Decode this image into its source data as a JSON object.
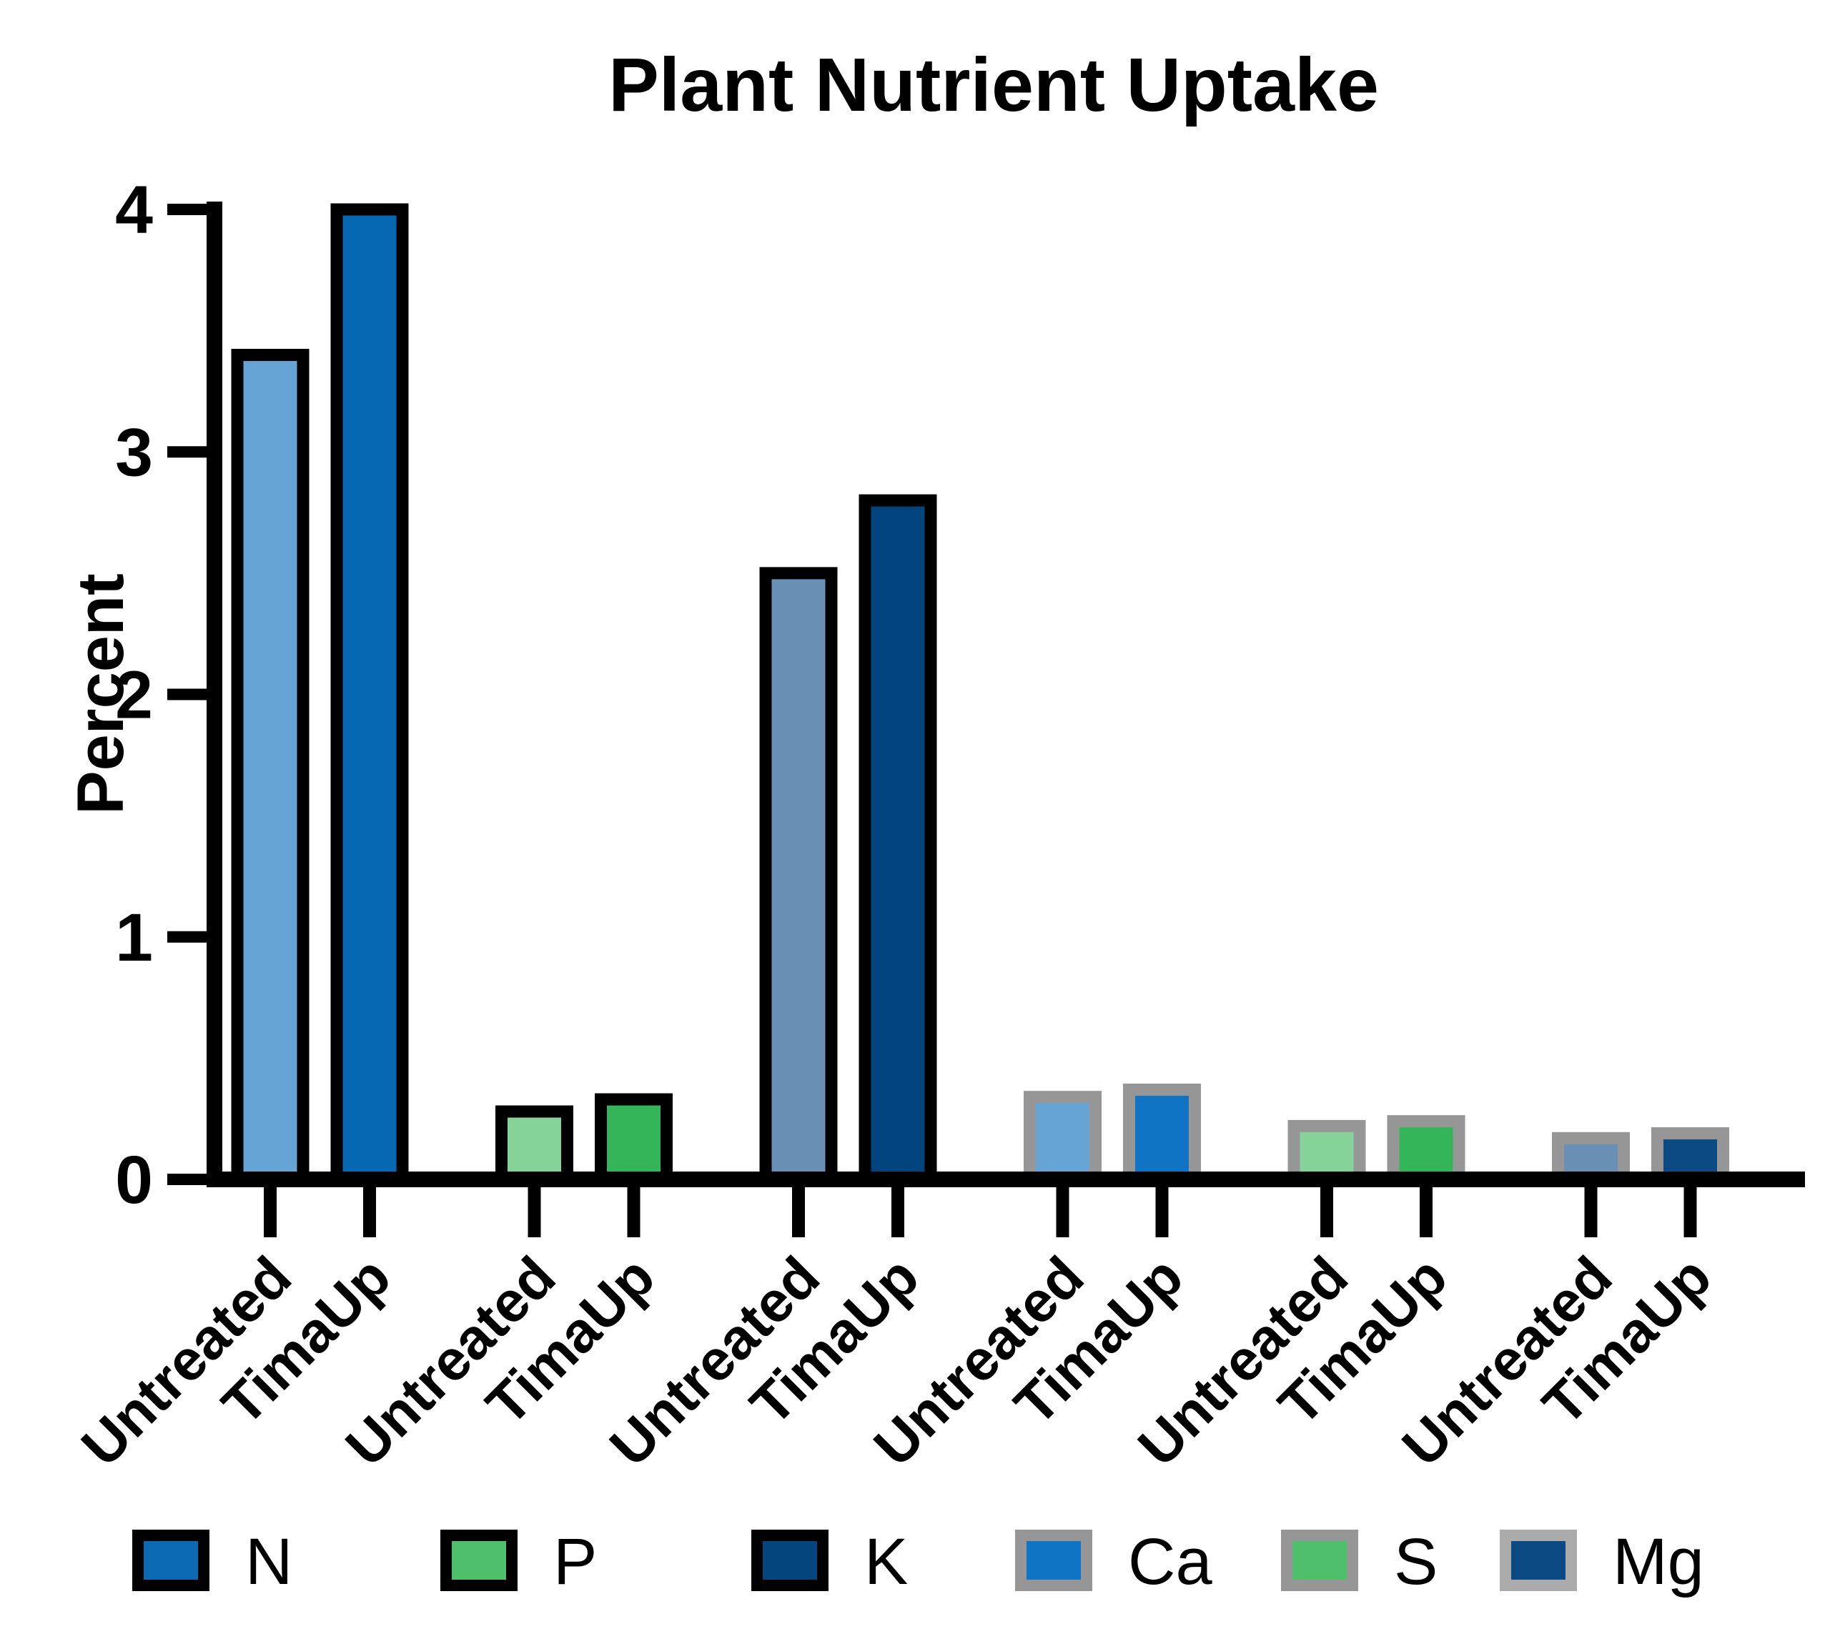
{
  "chart_data": {
    "type": "bar",
    "title": "Plant Nutrient Uptake",
    "ylabel": "Percent",
    "xlabel": "",
    "ylim": [
      0,
      4
    ],
    "yticks": [
      0,
      1,
      2,
      3,
      4
    ],
    "grid": false,
    "legend_position": "bottom",
    "treatments": [
      "Untreated",
      "TimaUp"
    ],
    "groups": [
      {
        "nutrient": "N",
        "border_color": "#000000",
        "bars": [
          {
            "treatment": "Untreated",
            "value": 3.4,
            "fill": "#67a4d6"
          },
          {
            "treatment": "TimaUp",
            "value": 4.0,
            "fill": "#0668b2"
          }
        ]
      },
      {
        "nutrient": "P",
        "border_color": "#000000",
        "bars": [
          {
            "treatment": "Untreated",
            "value": 0.28,
            "fill": "#85d398"
          },
          {
            "treatment": "TimaUp",
            "value": 0.33,
            "fill": "#35b559"
          }
        ]
      },
      {
        "nutrient": "K",
        "border_color": "#000000",
        "bars": [
          {
            "treatment": "Untreated",
            "value": 2.5,
            "fill": "#688fb4"
          },
          {
            "treatment": "TimaUp",
            "value": 2.8,
            "fill": "#02457e"
          }
        ]
      },
      {
        "nutrient": "Ca",
        "border_color": "#969696",
        "bars": [
          {
            "treatment": "Untreated",
            "value": 0.34,
            "fill": "#67a4d6"
          },
          {
            "treatment": "TimaUp",
            "value": 0.37,
            "fill": "#0f74c4"
          }
        ]
      },
      {
        "nutrient": "S",
        "border_color": "#969696",
        "bars": [
          {
            "treatment": "Untreated",
            "value": 0.22,
            "fill": "#85d398"
          },
          {
            "treatment": "TimaUp",
            "value": 0.24,
            "fill": "#35b559"
          }
        ]
      },
      {
        "nutrient": "Mg",
        "border_color": "#969696",
        "bars": [
          {
            "treatment": "Untreated",
            "value": 0.17,
            "fill": "#688fb4"
          },
          {
            "treatment": "TimaUp",
            "value": 0.19,
            "fill": "#0b4a82"
          }
        ]
      }
    ],
    "legend": [
      {
        "label": "N",
        "fill": "#0c69b4",
        "border": "#000000"
      },
      {
        "label": "P",
        "fill": "#4ec06c",
        "border": "#000000"
      },
      {
        "label": "K",
        "fill": "#05457e",
        "border": "#000000"
      },
      {
        "label": "Ca",
        "fill": "#0f74c4",
        "border": "#969696"
      },
      {
        "label": "S",
        "fill": "#4ec06c",
        "border": "#969696"
      },
      {
        "label": "Mg",
        "fill": "#0b4a82",
        "border": "#ababab"
      }
    ]
  }
}
